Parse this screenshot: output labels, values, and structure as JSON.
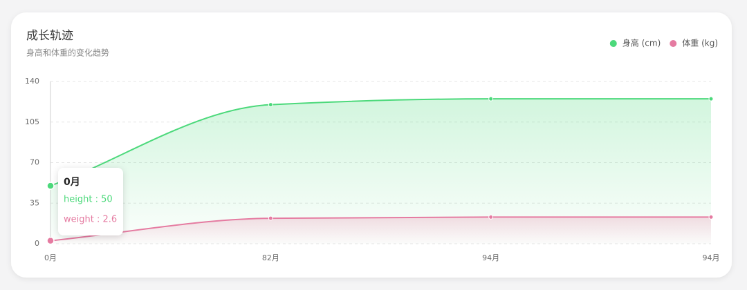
{
  "chart_data": {
    "type": "line",
    "title": "成长轨迹",
    "subtitle": "身高和体重的变化趋势",
    "categories": [
      "0月",
      "82月",
      "94月",
      "94月"
    ],
    "series": [
      {
        "name": "身高 (cm)",
        "color": "#4cd97b",
        "values": [
          50,
          120,
          125,
          125
        ]
      },
      {
        "name": "体重 (kg)",
        "color": "#e57ba1",
        "values": [
          2.6,
          22,
          23,
          23
        ]
      }
    ],
    "ylim": [
      0,
      140
    ],
    "yticks": [
      0,
      35,
      70,
      105,
      140
    ],
    "grid": true,
    "smooth": true,
    "area": true,
    "legend": "top-right",
    "tooltip": {
      "rows": [
        "height : 50",
        "weight : 2.6"
      ]
    }
  }
}
